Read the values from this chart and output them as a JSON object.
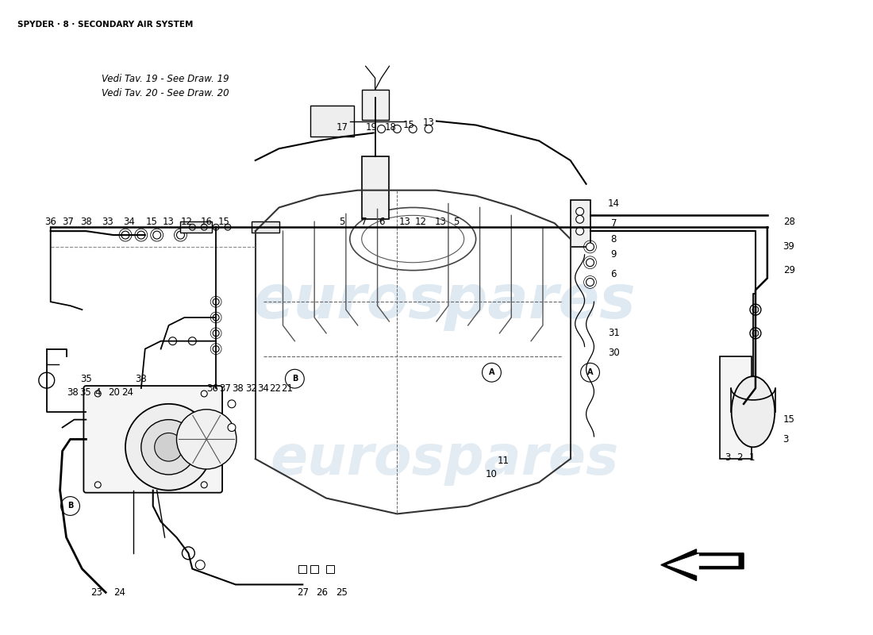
{
  "title": "SPYDER ·8· SECONDARY AIR SYSTEM",
  "bg_color": "#ffffff",
  "fig_width": 11.0,
  "fig_height": 8.0,
  "watermark_text": "eurospares",
  "watermark_color": "#b8cfe0",
  "watermark_alpha": 0.45,
  "note_lines": [
    "Vedi Tav. 19 - See Draw. 19",
    "Vedi Tav. 20 - See Draw. 20"
  ]
}
